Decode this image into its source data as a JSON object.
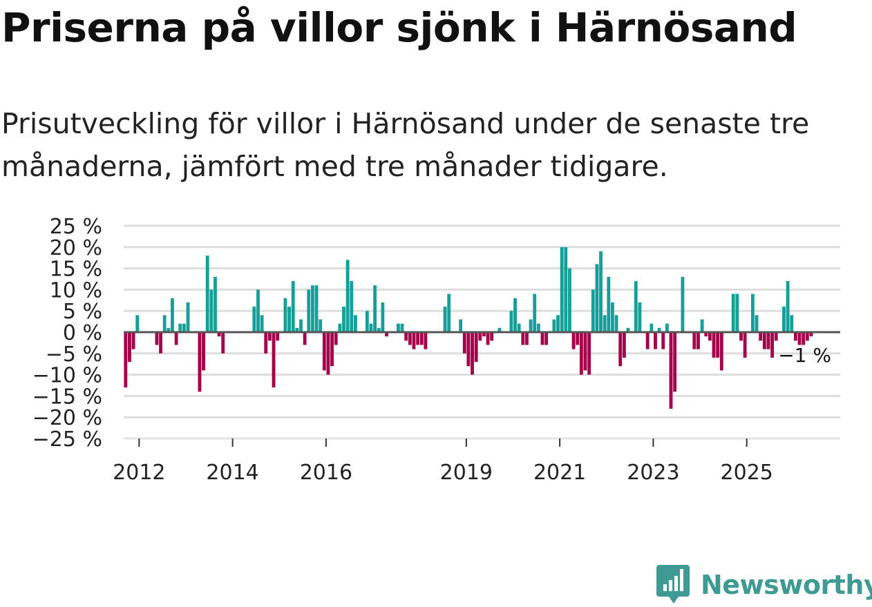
{
  "header": {
    "title": "Priserna på villor sjönk i Härnösand",
    "subtitle": "Prisutveckling för villor i Härnösand under de senaste tre månaderna, jämfört med tre månader tidigare."
  },
  "brand": {
    "name": "Newsworthy"
  },
  "colors": {
    "positive": "#14a098",
    "negative": "#a5004a",
    "grid": "#dddddd",
    "zero_line": "#555555",
    "text": "#222222"
  },
  "chart_data": {
    "type": "bar",
    "title": "Priserna på villor sjönk i Härnösand",
    "ylabel": "",
    "xlabel": "",
    "ylim": [
      -25,
      25
    ],
    "y_ticks": [
      "25 %",
      "20 %",
      "15 %",
      "10 %",
      "5 %",
      "0 %",
      "−5 %",
      "−10 %",
      "−15 %",
      "−20 %",
      "−25 %"
    ],
    "x_start": 2011.67,
    "x_end": 2027.0,
    "year_ticks": [
      2012,
      2014,
      2016,
      2019,
      2021,
      2023,
      2025
    ],
    "end_label": "−1 %",
    "values": [
      -13,
      -7,
      -4,
      4,
      null,
      null,
      null,
      null,
      -3,
      -5,
      4,
      1,
      8,
      -3,
      2,
      2,
      7,
      null,
      null,
      -14,
      -9,
      18,
      10,
      13,
      -1,
      -5,
      null,
      null,
      null,
      null,
      null,
      null,
      null,
      6,
      10,
      4,
      -5,
      -2,
      -13,
      -2,
      null,
      8,
      6,
      12,
      1,
      3,
      -3,
      10,
      11,
      11,
      3,
      -9,
      -10,
      -8,
      -3,
      2,
      6,
      17,
      12,
      4,
      null,
      null,
      5,
      2,
      11,
      1,
      7,
      -1,
      null,
      null,
      2,
      2,
      -2,
      -3,
      -4,
      -3,
      -3,
      -4,
      null,
      null,
      null,
      null,
      6,
      9,
      null,
      null,
      3,
      -5,
      -8,
      -10,
      -7,
      -2,
      -1,
      -3,
      -2,
      null,
      1,
      null,
      null,
      5,
      8,
      2,
      -3,
      -3,
      3,
      9,
      2,
      -3,
      -3,
      null,
      3,
      4,
      20,
      20,
      15,
      -4,
      -3,
      -10,
      -9,
      -10,
      10,
      16,
      19,
      4,
      13,
      7,
      4,
      -8,
      -6,
      1,
      null,
      12,
      7,
      null,
      -4,
      2,
      -4,
      1,
      -4,
      2,
      -18,
      -14,
      null,
      13,
      null,
      null,
      -4,
      -4,
      3,
      -1,
      -2,
      -6,
      -6,
      -9,
      null,
      null,
      9,
      9,
      -2,
      -6,
      null,
      9,
      4,
      -2,
      -4,
      -4,
      -6,
      -2,
      null,
      6,
      12,
      4,
      -2,
      -3,
      -3,
      -2,
      -1
    ]
  }
}
